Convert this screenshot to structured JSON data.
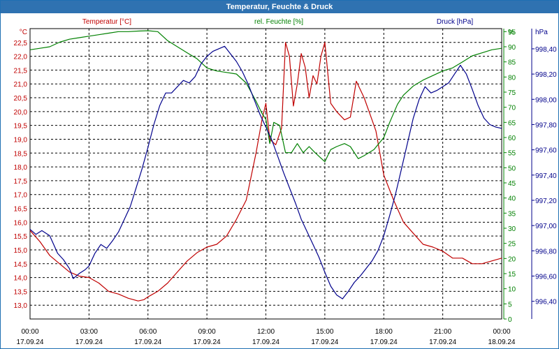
{
  "window": {
    "title": "Temperatur, Feuchte & Druck"
  },
  "chart_data": {
    "type": "line",
    "title": "Temperatur, Feuchte & Druck",
    "grid": true,
    "axes": {
      "temperature": {
        "label": "Temperatur [°C]",
        "unit": "°C",
        "color": "#c00000",
        "ylim": [
          12.5,
          23.0
        ],
        "ticks": [
          "13,0",
          "13,5",
          "14,0",
          "14,5",
          "15,0",
          "15,5",
          "16,0",
          "16,5",
          "17,0",
          "17,5",
          "18,0",
          "18,5",
          "19,0",
          "19,5",
          "20,0",
          "20,5",
          "21,0",
          "21,5",
          "22,0",
          "22,5"
        ]
      },
      "humidity": {
        "label": "rel. Feuchte [%]",
        "unit": "%",
        "color": "#008000",
        "ylim": [
          0,
          96
        ],
        "ticks": [
          "0",
          "5",
          "10",
          "15",
          "20",
          "25",
          "30",
          "35",
          "40",
          "45",
          "50",
          "55",
          "60",
          "65",
          "70",
          "75",
          "80",
          "85",
          "90",
          "95"
        ]
      },
      "pressure": {
        "label": "Druck [hPa]",
        "unit": "hPa",
        "color": "#00008b",
        "ylim": [
          996.26,
          998.56
        ],
        "ticks": [
          "996,40",
          "996,60",
          "996,80",
          "997,00",
          "997,20",
          "997,40",
          "997,60",
          "997,80",
          "998,00",
          "998,20",
          "998,40"
        ]
      },
      "x": {
        "label": "",
        "xlim": [
          0,
          24
        ],
        "ticks": [
          {
            "time": "00:00",
            "date": "17.09.24"
          },
          {
            "time": "03:00",
            "date": "17.09.24"
          },
          {
            "time": "06:00",
            "date": "17.09.24"
          },
          {
            "time": "09:00",
            "date": "17.09.24"
          },
          {
            "time": "12:00",
            "date": "17.09.24"
          },
          {
            "time": "15:00",
            "date": "17.09.24"
          },
          {
            "time": "18:00",
            "date": "17.09.24"
          },
          {
            "time": "21:00",
            "date": "17.09.24"
          },
          {
            "time": "00:00",
            "date": "18.09.24"
          }
        ]
      }
    },
    "series": [
      {
        "name": "Temperatur [°C]",
        "axis": "temperature",
        "color": "#c00000",
        "x": [
          0,
          0.5,
          1,
          1.5,
          2,
          2.5,
          3,
          3.5,
          4,
          4.5,
          5,
          5.5,
          5.8,
          6,
          6.5,
          7,
          7.5,
          8,
          8.5,
          9,
          9.5,
          10,
          10.5,
          11,
          11.5,
          11.8,
          12,
          12.2,
          12.5,
          12.8,
          13,
          13.2,
          13.4,
          13.6,
          13.8,
          14,
          14.2,
          14.4,
          14.6,
          14.8,
          15,
          15.3,
          15.6,
          16,
          16.3,
          16.6,
          17,
          17.3,
          17.6,
          18,
          18.5,
          19,
          19.5,
          20,
          20.5,
          21,
          21.5,
          22,
          22.5,
          23,
          23.5,
          24
        ],
        "y": [
          15.7,
          15.3,
          14.8,
          14.5,
          14.2,
          14.05,
          14.0,
          13.8,
          13.5,
          13.4,
          13.25,
          13.15,
          13.2,
          13.3,
          13.5,
          13.8,
          14.2,
          14.6,
          14.9,
          15.1,
          15.2,
          15.5,
          16.1,
          16.8,
          18.5,
          19.7,
          20.3,
          19.0,
          18.8,
          19.4,
          22.5,
          22.0,
          20.2,
          21.0,
          22.1,
          21.6,
          20.5,
          21.3,
          21.0,
          22.0,
          22.5,
          20.3,
          20.0,
          19.7,
          19.8,
          21.1,
          20.5,
          19.9,
          19.3,
          17.7,
          16.8,
          16.0,
          15.6,
          15.2,
          15.1,
          14.95,
          14.7,
          14.7,
          14.5,
          14.5,
          14.6,
          14.7
        ]
      },
      {
        "name": "rel. Feuchte [%]",
        "axis": "humidity",
        "color": "#008000",
        "x": [
          0,
          0.5,
          1,
          1.5,
          2,
          2.5,
          3,
          3.5,
          4,
          4.5,
          5,
          5.5,
          6,
          6.5,
          7,
          7.5,
          8,
          8.5,
          9,
          9.5,
          10,
          10.5,
          11,
          11.5,
          11.8,
          12,
          12.2,
          12.4,
          12.7,
          13,
          13.3,
          13.6,
          13.9,
          14.2,
          14.5,
          15,
          15.3,
          15.6,
          16,
          16.3,
          16.7,
          17,
          17.5,
          18,
          18.3,
          18.7,
          19,
          19.5,
          20,
          20.5,
          21,
          21.5,
          22,
          22.5,
          23,
          23.5,
          24
        ],
        "y": [
          89,
          89.5,
          90,
          91.5,
          92.5,
          93,
          93.5,
          94,
          94.5,
          95,
          95,
          95.2,
          95.3,
          95,
          92,
          90,
          88,
          86,
          83,
          82,
          81.5,
          81,
          78,
          72,
          68,
          66,
          58,
          65,
          64,
          55,
          55,
          58,
          55,
          57,
          55,
          52,
          56,
          57,
          58,
          57,
          53,
          54,
          56,
          60,
          65,
          71,
          74,
          77,
          79,
          80.5,
          82,
          83,
          85,
          87,
          88,
          89,
          89.5
        ]
      },
      {
        "name": "Druck [hPa]",
        "axis": "pressure",
        "color": "#00008b",
        "x": [
          0,
          0.3,
          0.6,
          1,
          1.2,
          1.4,
          1.7,
          2,
          2.2,
          2.5,
          2.8,
          3,
          3.3,
          3.6,
          3.9,
          4.2,
          4.5,
          4.8,
          5.1,
          5.4,
          5.7,
          6,
          6.3,
          6.6,
          6.9,
          7.2,
          7.5,
          7.8,
          8.1,
          8.4,
          8.7,
          9,
          9.3,
          9.6,
          9.9,
          10.2,
          10.5,
          10.8,
          11.1,
          11.4,
          11.7,
          12,
          12.3,
          12.6,
          12.9,
          13.2,
          13.5,
          13.8,
          14.1,
          14.4,
          14.7,
          15,
          15.3,
          15.6,
          15.9,
          16.2,
          16.5,
          16.8,
          17.1,
          17.4,
          17.7,
          18,
          18.3,
          18.6,
          18.9,
          19.2,
          19.5,
          19.8,
          20.1,
          20.4,
          20.7,
          21,
          21.3,
          21.6,
          21.9,
          22.2,
          22.5,
          22.8,
          23.1,
          23.4,
          23.7,
          24
        ],
        "y": [
          996.97,
          996.93,
          996.96,
          996.92,
          996.85,
          996.78,
          996.73,
          996.66,
          996.58,
          996.62,
          996.65,
          996.68,
          996.78,
          996.85,
          996.82,
          996.88,
          996.95,
          997.05,
          997.15,
          997.3,
          997.45,
          997.62,
          997.8,
          997.95,
          998.05,
          998.05,
          998.1,
          998.15,
          998.13,
          998.18,
          998.28,
          998.34,
          998.38,
          998.4,
          998.42,
          998.36,
          998.3,
          998.22,
          998.12,
          998.0,
          997.88,
          997.78,
          997.68,
          997.55,
          997.42,
          997.3,
          997.18,
          997.05,
          996.95,
          996.85,
          996.75,
          996.63,
          996.52,
          996.45,
          996.42,
          996.48,
          996.55,
          996.6,
          996.66,
          996.72,
          996.8,
          996.92,
          997.08,
          997.25,
          997.45,
          997.65,
          997.85,
          998.0,
          998.1,
          998.05,
          998.07,
          998.1,
          998.13,
          998.2,
          998.27,
          998.2,
          998.08,
          997.95,
          997.85,
          997.8,
          997.78,
          997.77
        ]
      }
    ]
  }
}
